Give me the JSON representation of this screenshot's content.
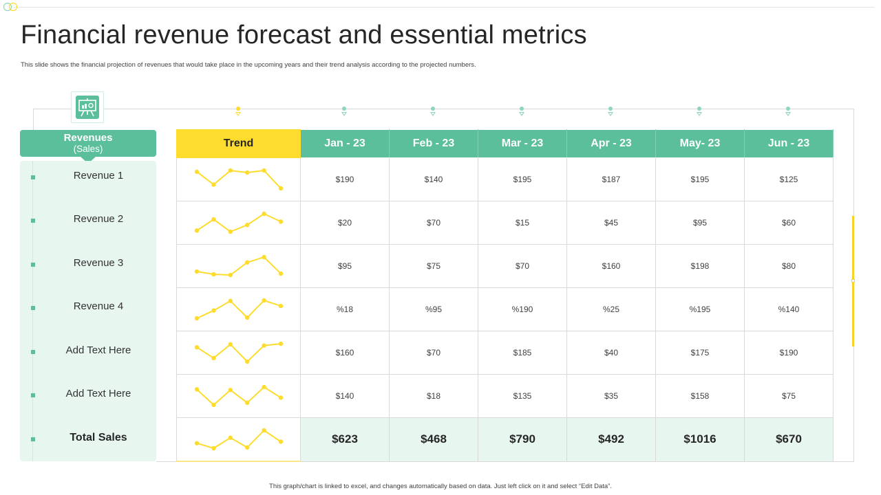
{
  "title": "Financial revenue forecast and essential metrics",
  "subtitle": "This slide shows the financial projection of revenues that  would take place in  the upcoming years and their trend analysis  according to the projected numbers.",
  "footer": "This graph/chart is linked to excel, and changes automatically based on data. Just left click on it and select “Edit Data”.",
  "colors": {
    "accent": "#5bbf9c",
    "trend": "#fddc2e",
    "light": "#e8f6f0"
  },
  "sidebar": {
    "icon": "presentation-board-icon",
    "header": "Revenues",
    "subheader": "(Sales)"
  },
  "table": {
    "trend_header": "Trend",
    "months": [
      "Jan - 23",
      "Feb - 23",
      "Mar - 23",
      "Apr - 23",
      "May- 23",
      "Jun - 23"
    ],
    "rows": [
      {
        "label": "Revenue 1",
        "cells": [
          "$190",
          "$140",
          "$195",
          "$187",
          "$195",
          "$125"
        ],
        "trend": [
          190,
          140,
          195,
          187,
          195,
          125
        ]
      },
      {
        "label": "Revenue 2",
        "cells": [
          "$20",
          "$70",
          "$15",
          "$45",
          "$95",
          "$60"
        ],
        "trend": [
          20,
          70,
          15,
          45,
          95,
          60
        ]
      },
      {
        "label": "Revenue 3",
        "cells": [
          "$95",
          "$75",
          "$70",
          "$160",
          "$198",
          "$80"
        ],
        "trend": [
          95,
          75,
          70,
          160,
          198,
          80
        ]
      },
      {
        "label": "Revenue 4",
        "cells": [
          "%18",
          "%95",
          "%190",
          "%25",
          "%195",
          "%140"
        ],
        "trend": [
          18,
          95,
          190,
          25,
          195,
          140
        ]
      },
      {
        "label": "Add Text Here",
        "cells": [
          "$160",
          "$70",
          "$185",
          "$40",
          "$175",
          "$190"
        ],
        "trend": [
          160,
          70,
          185,
          40,
          175,
          190
        ]
      },
      {
        "label": "Add Text Here",
        "cells": [
          "$140",
          "$18",
          "$135",
          "$35",
          "$158",
          "$75"
        ],
        "trend": [
          140,
          18,
          135,
          35,
          158,
          75
        ]
      }
    ],
    "total": {
      "label": "Total Sales",
      "cells": [
        "$623",
        "$468",
        "$790",
        "$492",
        "$1016",
        "$670"
      ],
      "trend": [
        623,
        468,
        790,
        492,
        1016,
        670
      ]
    }
  }
}
